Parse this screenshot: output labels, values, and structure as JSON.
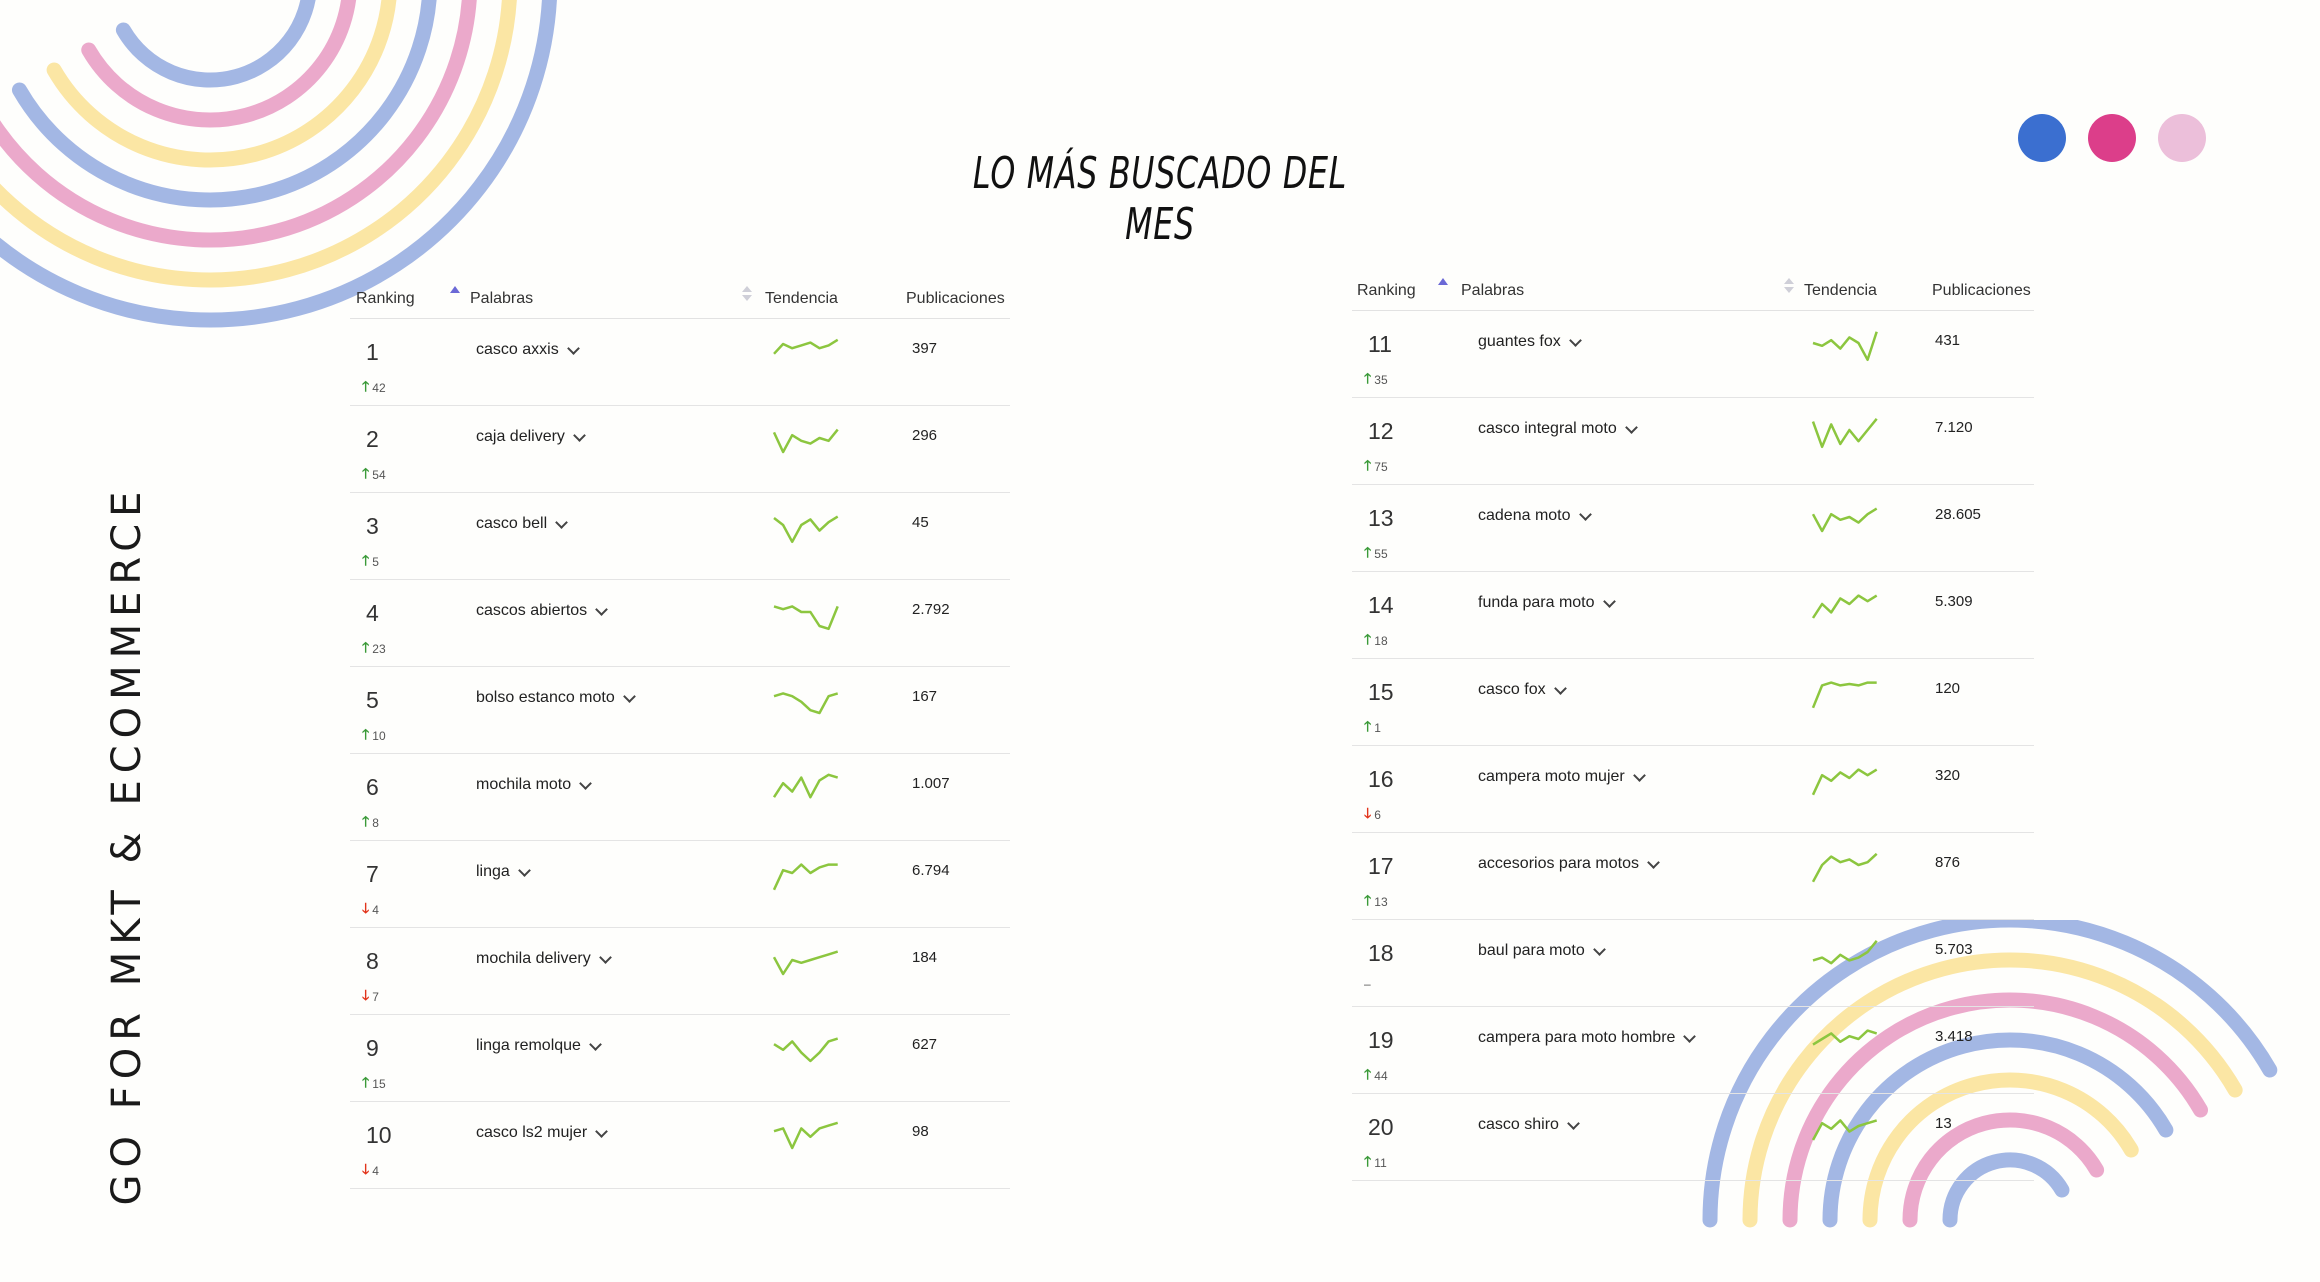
{
  "title": "LO MÁS BUSCADO DEL MES",
  "side_label": "GO FOR MKT & ECOMMERCE",
  "colors": {
    "blue": "#3b6fd0",
    "pink": "#dc3e8a",
    "light_pink": "#ecbfda",
    "trend_green": "#8cc63f",
    "up_green": "#3a9a38",
    "down_red": "#e2341b"
  },
  "table_headers": {
    "ranking": "Ranking",
    "palabras": "Palabras",
    "tendencia": "Tendencia",
    "publicaciones": "Publicaciones"
  },
  "left_rows": [
    {
      "rank": "1",
      "dir": "up",
      "delta": "42",
      "word": "casco axxis",
      "pubs": "397",
      "trend": [
        12,
        5,
        8,
        6,
        4,
        8,
        6,
        2
      ]
    },
    {
      "rank": "2",
      "dir": "up",
      "delta": "54",
      "word": "caja delivery",
      "pubs": "296",
      "trend": [
        6,
        20,
        8,
        12,
        14,
        10,
        12,
        4
      ]
    },
    {
      "rank": "3",
      "dir": "up",
      "delta": "5",
      "word": "casco bell",
      "pubs": "45",
      "trend": [
        5,
        10,
        22,
        10,
        6,
        14,
        8,
        4
      ]
    },
    {
      "rank": "4",
      "dir": "up",
      "delta": "23",
      "word": "cascos abiertos",
      "pubs": "2.792",
      "trend": [
        6,
        8,
        6,
        10,
        10,
        20,
        22,
        6
      ]
    },
    {
      "rank": "5",
      "dir": "up",
      "delta": "10",
      "word": "bolso estanco moto",
      "pubs": "167",
      "trend": [
        8,
        6,
        8,
        12,
        18,
        20,
        8,
        6
      ]
    },
    {
      "rank": "6",
      "dir": "up",
      "delta": "8",
      "word": "mochila moto",
      "pubs": "1.007",
      "trend": [
        18,
        8,
        14,
        4,
        18,
        6,
        2,
        4
      ]
    },
    {
      "rank": "7",
      "dir": "down",
      "delta": "4",
      "word": "linga",
      "pubs": "6.794",
      "trend": [
        22,
        8,
        10,
        4,
        10,
        6,
        4,
        4
      ]
    },
    {
      "rank": "8",
      "dir": "down",
      "delta": "7",
      "word": "mochila delivery",
      "pubs": "184",
      "trend": [
        8,
        20,
        10,
        12,
        10,
        8,
        6,
        4
      ]
    },
    {
      "rank": "9",
      "dir": "up",
      "delta": "15",
      "word": "linga remolque",
      "pubs": "627",
      "trend": [
        8,
        12,
        6,
        14,
        20,
        14,
        6,
        4
      ]
    },
    {
      "rank": "10",
      "dir": "down",
      "delta": "4",
      "word": "casco ls2 mujer",
      "pubs": "98",
      "trend": [
        8,
        6,
        20,
        6,
        12,
        6,
        4,
        2
      ]
    }
  ],
  "right_rows": [
    {
      "rank": "11",
      "dir": "up",
      "delta": "35",
      "word": "guantes fox",
      "pubs": "431",
      "trend": [
        10,
        12,
        8,
        14,
        6,
        10,
        22,
        2
      ]
    },
    {
      "rank": "12",
      "dir": "up",
      "delta": "75",
      "word": "casco integral moto",
      "pubs": "7.120",
      "trend": [
        4,
        22,
        6,
        20,
        10,
        18,
        10,
        2
      ]
    },
    {
      "rank": "13",
      "dir": "up",
      "delta": "55",
      "word": "cadena moto",
      "pubs": "28.605",
      "trend": [
        8,
        20,
        8,
        12,
        10,
        14,
        8,
        4
      ]
    },
    {
      "rank": "14",
      "dir": "up",
      "delta": "18",
      "word": "funda para moto",
      "pubs": "5.309",
      "trend": [
        20,
        10,
        16,
        6,
        10,
        4,
        8,
        4
      ]
    },
    {
      "rank": "15",
      "dir": "up",
      "delta": "1",
      "word": "casco fox",
      "pubs": "120",
      "trend": [
        22,
        6,
        4,
        6,
        5,
        6,
        4,
        4
      ]
    },
    {
      "rank": "16",
      "dir": "down",
      "delta": "6",
      "word": "campera moto mujer",
      "pubs": "320",
      "trend": [
        22,
        8,
        12,
        6,
        10,
        4,
        8,
        4
      ]
    },
    {
      "rank": "17",
      "dir": "up",
      "delta": "13",
      "word": "accesorios para motos",
      "pubs": "876",
      "trend": [
        22,
        10,
        4,
        8,
        6,
        10,
        8,
        2
      ]
    },
    {
      "rank": "18",
      "dir": "none",
      "delta": "–",
      "word": "baul para moto",
      "pubs": "5.703",
      "trend": [
        16,
        14,
        18,
        12,
        16,
        14,
        10,
        2
      ]
    },
    {
      "rank": "19",
      "dir": "up",
      "delta": "44",
      "word": "campera para moto hombre",
      "pubs": "3.418",
      "trend": [
        14,
        10,
        6,
        12,
        8,
        10,
        4,
        6
      ]
    },
    {
      "rank": "20",
      "dir": "up",
      "delta": "11",
      "word": "casco shiro",
      "pubs": "13",
      "trend": [
        20,
        8,
        12,
        6,
        14,
        10,
        8,
        6
      ]
    }
  ]
}
